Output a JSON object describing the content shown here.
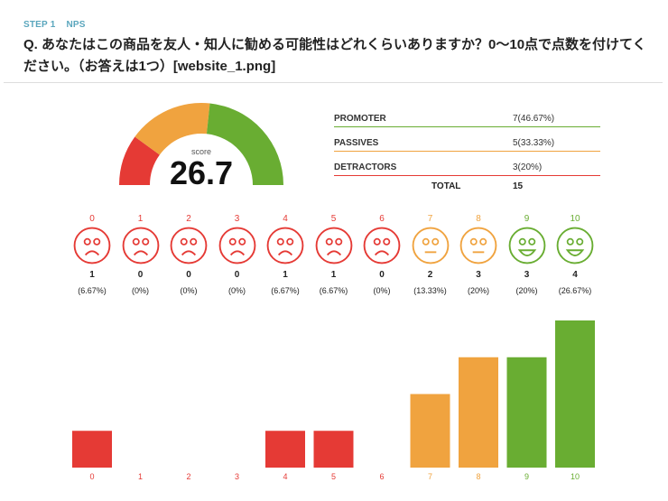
{
  "header": {
    "step": "STEP 1",
    "type": "NPS",
    "question": "Q. あなたはこの商品を友人・知人に勧める可能性はどれくらいありますか？0〜10点で点数を付けてください。（お答えは1つ）[website_1.png]"
  },
  "gauge": {
    "label": "score",
    "value": "26.7",
    "segments": [
      {
        "name": "detractors",
        "percent": 20,
        "color": "#e53a35"
      },
      {
        "name": "passives",
        "percent": 33.33,
        "color": "#f0a33f"
      },
      {
        "name": "promoters",
        "percent": 46.67,
        "color": "#69ad32"
      }
    ]
  },
  "summary": {
    "rows": [
      {
        "name": "PROMOTER",
        "value": "7(46.67%)",
        "color": "#69ad32"
      },
      {
        "name": "PASSIVES",
        "value": "5(33.33%)",
        "color": "#f0a33f"
      },
      {
        "name": "DETRACTORS",
        "value": "3(20%)",
        "color": "#e53a35"
      }
    ],
    "total_label": "TOTAL",
    "total_value": "15"
  },
  "colors": {
    "detractor": "#e53a35",
    "passive": "#f0a33f",
    "promoter": "#69ad32"
  },
  "scores": [
    {
      "score": "0",
      "count": "1",
      "pct": "(6.67%)",
      "type": "detractor",
      "face": "sad-face-icon"
    },
    {
      "score": "1",
      "count": "0",
      "pct": "(0%)",
      "type": "detractor",
      "face": "sad-face-icon"
    },
    {
      "score": "2",
      "count": "0",
      "pct": "(0%)",
      "type": "detractor",
      "face": "sad-face-icon"
    },
    {
      "score": "3",
      "count": "0",
      "pct": "(0%)",
      "type": "detractor",
      "face": "sad-face-icon"
    },
    {
      "score": "4",
      "count": "1",
      "pct": "(6.67%)",
      "type": "detractor",
      "face": "sad-face-icon"
    },
    {
      "score": "5",
      "count": "1",
      "pct": "(6.67%)",
      "type": "detractor",
      "face": "sad-face-icon"
    },
    {
      "score": "6",
      "count": "0",
      "pct": "(0%)",
      "type": "detractor",
      "face": "sad-face-icon"
    },
    {
      "score": "7",
      "count": "2",
      "pct": "(13.33%)",
      "type": "passive",
      "face": "neutral-face-icon"
    },
    {
      "score": "8",
      "count": "3",
      "pct": "(20%)",
      "type": "passive",
      "face": "neutral-face-icon"
    },
    {
      "score": "9",
      "count": "3",
      "pct": "(20%)",
      "type": "promoter",
      "face": "happy-face-icon"
    },
    {
      "score": "10",
      "count": "4",
      "pct": "(26.67%)",
      "type": "promoter",
      "face": "happy-face-icon"
    }
  ],
  "chart_data": {
    "type": "bar",
    "categories": [
      "0",
      "1",
      "2",
      "3",
      "4",
      "5",
      "6",
      "7",
      "8",
      "9",
      "10"
    ],
    "values": [
      1,
      0,
      0,
      0,
      1,
      1,
      0,
      2,
      3,
      3,
      4
    ],
    "ylim": [
      0,
      4
    ],
    "grid": false
  }
}
